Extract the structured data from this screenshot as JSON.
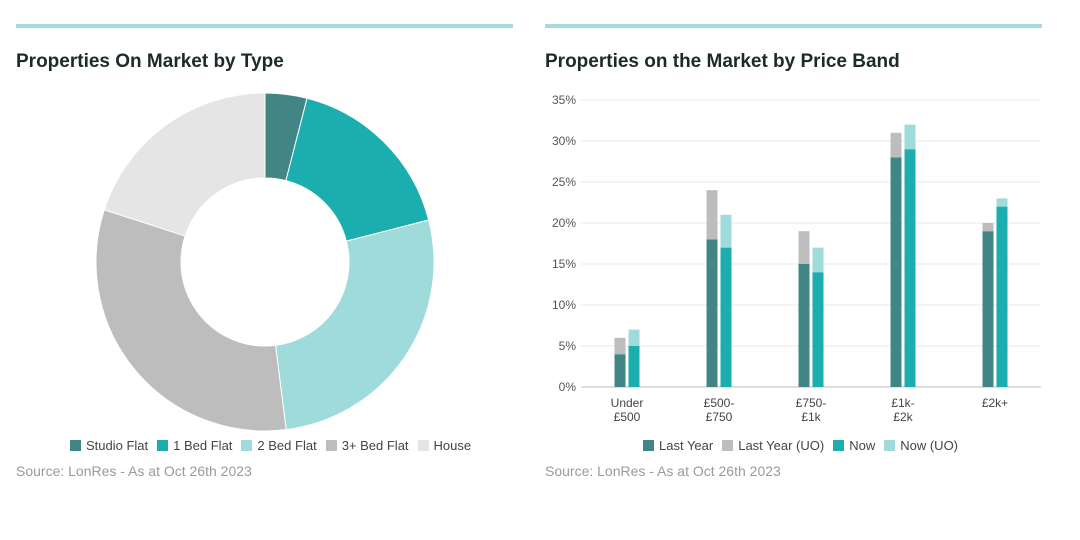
{
  "colors": {
    "studio": "#418585",
    "one_bed": "#1caeae",
    "two_bed": "#9fdbdb",
    "three_bed": "#bdbdbd",
    "house": "#e5e5e5",
    "last_year": "#418585",
    "last_year_uo": "#bdbdbd",
    "now": "#1caeae",
    "now_uo": "#9fdbdb",
    "accent_bar": "#a6dcdd"
  },
  "left": {
    "title": "Properties On Market by Type",
    "source": "Source: LonRes - As at Oct 26th 2023"
  },
  "right": {
    "title": "Properties on the Market by Price Band",
    "source": "Source: LonRes - As at Oct 26th 2023"
  },
  "chart_data": [
    {
      "type": "pie",
      "style": "donut",
      "title": "Properties On Market by Type",
      "labels": [
        "Studio Flat",
        "1 Bed Flat",
        "2 Bed Flat",
        "3+ Bed Flat",
        "House"
      ],
      "values": [
        4,
        17,
        27,
        32,
        20
      ],
      "colors": [
        "#418585",
        "#1caeae",
        "#9fdbdb",
        "#bdbdbd",
        "#e5e5e5"
      ],
      "legend": "bottom"
    },
    {
      "type": "bar",
      "stacked": true,
      "title": "Properties on the Market by Price Band",
      "categories": [
        [
          "Under",
          "£500"
        ],
        [
          "£500-",
          "£750"
        ],
        [
          "£750-",
          "£1k"
        ],
        [
          "£1k-",
          "£2k"
        ],
        [
          "£2k+"
        ]
      ],
      "groups": [
        {
          "bars": [
            {
              "name": "Last Year",
              "values": [
                4,
                18,
                15,
                28,
                19
              ],
              "color": "#418585"
            },
            {
              "name": "Last Year (UO)",
              "values": [
                2,
                6,
                4,
                3,
                1
              ],
              "color": "#bdbdbd"
            }
          ]
        },
        {
          "bars": [
            {
              "name": "Now",
              "values": [
                5,
                17,
                14,
                29,
                22
              ],
              "color": "#1caeae"
            },
            {
              "name": "Now (UO)",
              "values": [
                2,
                4,
                3,
                3,
                1
              ],
              "color": "#9fdbdb"
            }
          ]
        }
      ],
      "yticks": [
        "0%",
        "5%",
        "10%",
        "15%",
        "20%",
        "25%",
        "30%",
        "35%"
      ],
      "ylim": [
        0,
        35
      ],
      "grid": true,
      "legend": "bottom",
      "legend_entries": [
        {
          "name": "Last Year",
          "color": "#418585"
        },
        {
          "name": "Last Year (UO)",
          "color": "#bdbdbd"
        },
        {
          "name": "Now",
          "color": "#1caeae"
        },
        {
          "name": "Now (UO)",
          "color": "#9fdbdb"
        }
      ]
    }
  ]
}
